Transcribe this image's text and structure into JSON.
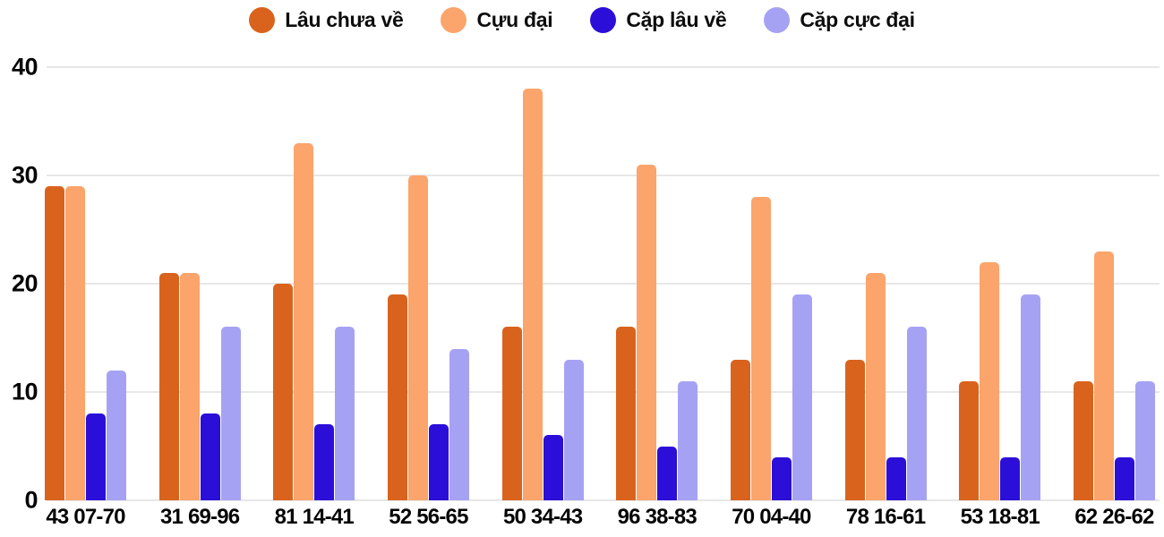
{
  "chart_data": {
    "type": "bar",
    "title": "",
    "xlabel": "",
    "ylabel": "",
    "categories": [
      "43 07-70",
      "31 69-96",
      "81 14-41",
      "52 56-65",
      "50 34-43",
      "96 38-83",
      "70 04-40",
      "78 16-61",
      "53 18-81",
      "62 26-62"
    ],
    "series": [
      {
        "name": "Lâu chưa về",
        "color": "#d9631d",
        "values": [
          29,
          21,
          20,
          19,
          16,
          16,
          13,
          13,
          11,
          11
        ]
      },
      {
        "name": "Cựu đại",
        "color": "#fba46b",
        "values": [
          29,
          21,
          33,
          30,
          38,
          31,
          28,
          21,
          22,
          23
        ]
      },
      {
        "name": "Cặp lâu về",
        "color": "#2b0fd9",
        "values": [
          8,
          8,
          7,
          7,
          6,
          5,
          4,
          4,
          4,
          4
        ]
      },
      {
        "name": "Cặp cực đại",
        "color": "#a6a2f3",
        "values": [
          12,
          16,
          16,
          14,
          13,
          11,
          19,
          16,
          19,
          11
        ]
      }
    ],
    "ylim": [
      0,
      40
    ],
    "yticks": [
      0,
      10,
      20,
      30,
      40
    ],
    "grid": true,
    "legend_position": "top",
    "colors": {
      "gridline": "#e7e7e7",
      "text": "#050505",
      "background": "#ffffff"
    }
  }
}
